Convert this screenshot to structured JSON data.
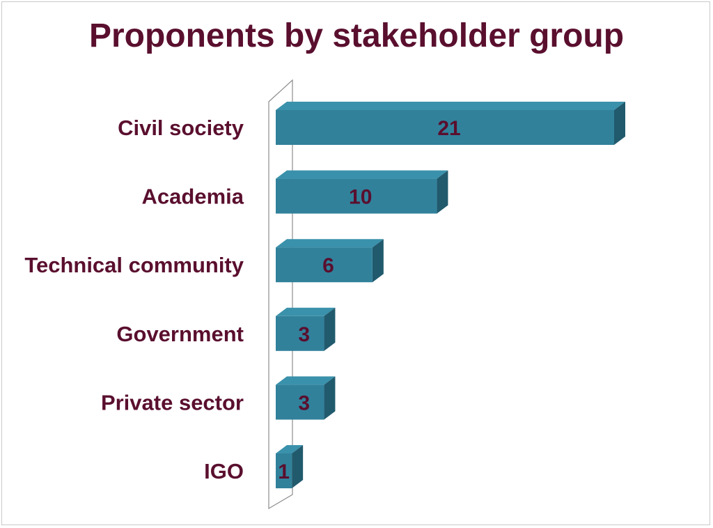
{
  "chart_data": {
    "type": "bar",
    "orientation": "horizontal",
    "title": "Proponents by stakeholder group",
    "categories": [
      "Civil society",
      "Academia",
      "Technical community",
      "Government",
      "Private sector",
      "IGO"
    ],
    "values": [
      21,
      10,
      6,
      3,
      3,
      1
    ],
    "xlabel": "",
    "ylabel": "",
    "xlim": [
      0,
      21
    ],
    "grid": false,
    "legend": "none",
    "data_labels": true,
    "style": "3d",
    "colors": {
      "bar_front": "#31819b",
      "bar_top": "#3a91ab",
      "bar_side": "#215a6d",
      "text": "#5a0f2e",
      "axis_wall": "#8c8c8c"
    }
  }
}
